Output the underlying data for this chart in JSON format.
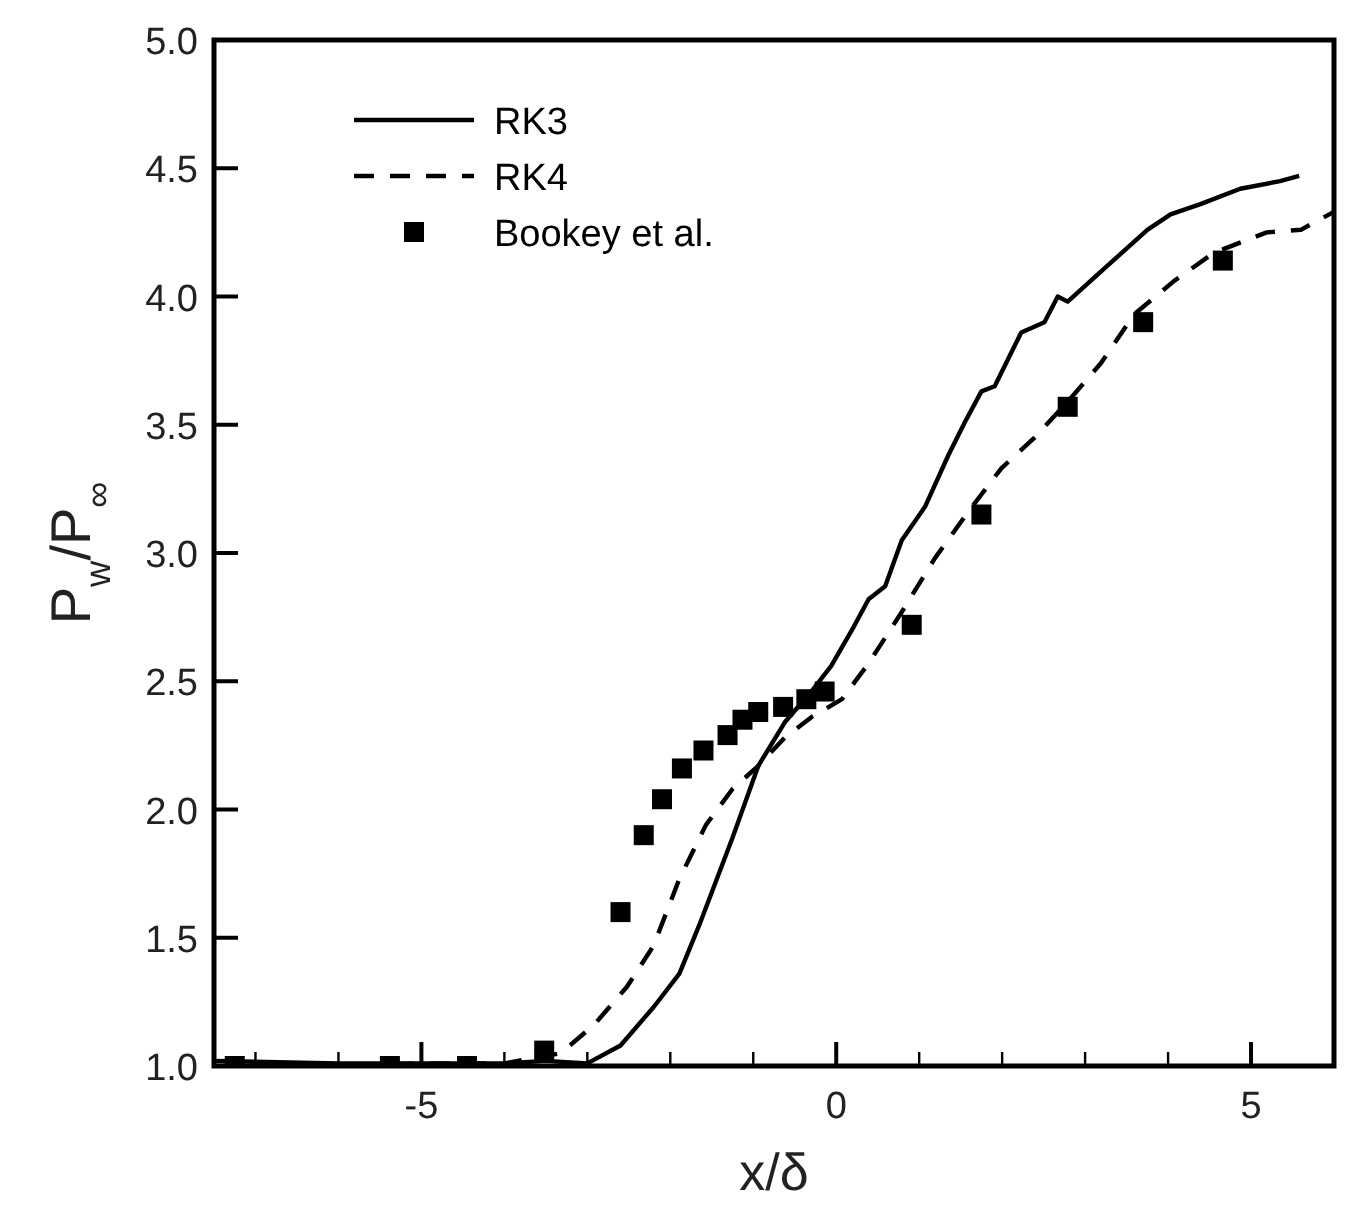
{
  "chart_data": {
    "type": "line",
    "xlabel": "x/δ",
    "ylabel": "P$_{w}$/P$_{∞}$",
    "xlim": [
      -7.5,
      6
    ],
    "ylim": [
      1,
      5
    ],
    "xticks": [
      {
        "value": -7,
        "label": null
      },
      {
        "value": -6,
        "label": null
      },
      -5,
      {
        "value": -4,
        "label": null
      },
      {
        "value": -3,
        "label": null
      },
      {
        "value": -2,
        "label": null
      },
      {
        "value": -1,
        "label": null
      },
      0,
      {
        "value": 1,
        "label": null
      },
      {
        "value": 2,
        "label": null
      },
      {
        "value": 3,
        "label": null
      },
      {
        "value": 4,
        "label": null
      },
      5,
      {
        "value": 6,
        "label": null
      }
    ],
    "yticks": [
      {
        "value": 1,
        "label": "1.0"
      },
      {
        "value": 1.5,
        "label": "1.5"
      },
      {
        "value": 2,
        "label": "2.0"
      },
      {
        "value": 2.5,
        "label": "2.5"
      },
      {
        "value": 3,
        "label": "3.0"
      },
      {
        "value": 3.5,
        "label": "3.5"
      },
      {
        "value": 4,
        "label": "4.0"
      },
      {
        "value": 4.5,
        "label": "4.5"
      },
      {
        "value": 5,
        "label": "5.0"
      }
    ],
    "grid": false,
    "legend": "top left",
    "series": [
      {
        "name": "RK3",
        "line_style": "solid",
        "color": "#000000",
        "x": [
          -7.5,
          -6,
          -5,
          -4,
          -3.5,
          -3,
          -2.6,
          -2.2,
          -1.89,
          -1.65,
          -1.25,
          -0.94,
          -0.62,
          -0.3,
          -0.06,
          0.19,
          0.39,
          0.59,
          0.79,
          1.07,
          1.35,
          1.55,
          1.75,
          1.91,
          2.23,
          2.51,
          2.67,
          2.79,
          3.27,
          3.75,
          4.03,
          4.39,
          4.87,
          5.35,
          5.58
        ],
        "values": [
          1.02,
          1.01,
          1.01,
          1.01,
          1.02,
          1.01,
          1.08,
          1.23,
          1.36,
          1.55,
          1.89,
          2.17,
          2.34,
          2.46,
          2.56,
          2.7,
          2.82,
          2.87,
          3.05,
          3.18,
          3.38,
          3.51,
          3.63,
          3.65,
          3.86,
          3.9,
          4.0,
          3.98,
          4.12,
          4.26,
          4.32,
          4.36,
          4.42,
          4.45,
          4.47
        ]
      },
      {
        "name": "RK4",
        "line_style": "dashed",
        "color": "#000000",
        "x": [
          -7.5,
          -6,
          -5,
          -4,
          -3.32,
          -2.92,
          -2.52,
          -2.2,
          -1.89,
          -1.57,
          -1.25,
          -0.94,
          -0.62,
          -0.3,
          0.07,
          0.39,
          0.79,
          1.19,
          1.59,
          1.99,
          2.39,
          2.79,
          3.19,
          3.59,
          4.07,
          4.55,
          5.19,
          5.6,
          6.0
        ],
        "values": [
          1.0,
          1.0,
          1.01,
          1.01,
          1.05,
          1.16,
          1.31,
          1.47,
          1.73,
          1.94,
          2.08,
          2.17,
          2.28,
          2.36,
          2.43,
          2.57,
          2.77,
          2.98,
          3.16,
          3.33,
          3.45,
          3.59,
          3.74,
          3.93,
          4.06,
          4.17,
          4.25,
          4.26,
          4.33
        ]
      },
      {
        "name": "Bookey et al.",
        "type": "scatter",
        "marker": "square",
        "color": "#000000",
        "x": [
          -7.25,
          -5.38,
          -4.45,
          -3.52,
          -2.6,
          -2.32,
          -2.1,
          -1.86,
          -1.6,
          -1.31,
          -1.13,
          -0.94,
          -0.64,
          -0.36,
          -0.14,
          0.91,
          1.75,
          2.79,
          3.7,
          4.66
        ],
        "values": [
          1.0,
          1.0,
          1.0,
          1.06,
          1.6,
          1.9,
          2.04,
          2.16,
          2.23,
          2.29,
          2.35,
          2.38,
          2.4,
          2.43,
          2.46,
          2.72,
          3.15,
          3.57,
          3.9,
          4.14
        ]
      }
    ]
  }
}
